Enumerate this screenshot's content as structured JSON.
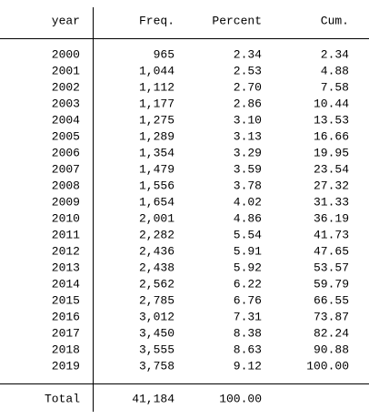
{
  "table": {
    "header": [
      "year",
      "Freq.",
      "Percent",
      "Cum."
    ],
    "rows": [
      [
        "2000",
        "965",
        "2.34",
        "2.34"
      ],
      [
        "2001",
        "1,044",
        "2.53",
        "4.88"
      ],
      [
        "2002",
        "1,112",
        "2.70",
        "7.58"
      ],
      [
        "2003",
        "1,177",
        "2.86",
        "10.44"
      ],
      [
        "2004",
        "1,275",
        "3.10",
        "13.53"
      ],
      [
        "2005",
        "1,289",
        "3.13",
        "16.66"
      ],
      [
        "2006",
        "1,354",
        "3.29",
        "19.95"
      ],
      [
        "2007",
        "1,479",
        "3.59",
        "23.54"
      ],
      [
        "2008",
        "1,556",
        "3.78",
        "27.32"
      ],
      [
        "2009",
        "1,654",
        "4.02",
        "31.33"
      ],
      [
        "2010",
        "2,001",
        "4.86",
        "36.19"
      ],
      [
        "2011",
        "2,282",
        "5.54",
        "41.73"
      ],
      [
        "2012",
        "2,436",
        "5.91",
        "47.65"
      ],
      [
        "2013",
        "2,438",
        "5.92",
        "53.57"
      ],
      [
        "2014",
        "2,562",
        "6.22",
        "59.79"
      ],
      [
        "2015",
        "2,785",
        "6.76",
        "66.55"
      ],
      [
        "2016",
        "3,012",
        "7.31",
        "73.87"
      ],
      [
        "2017",
        "3,450",
        "8.38",
        "82.24"
      ],
      [
        "2018",
        "3,555",
        "8.63",
        "90.88"
      ],
      [
        "2019",
        "3,758",
        "9.12",
        "100.00"
      ]
    ],
    "total": [
      "Total",
      "41,184",
      "100.00"
    ]
  }
}
